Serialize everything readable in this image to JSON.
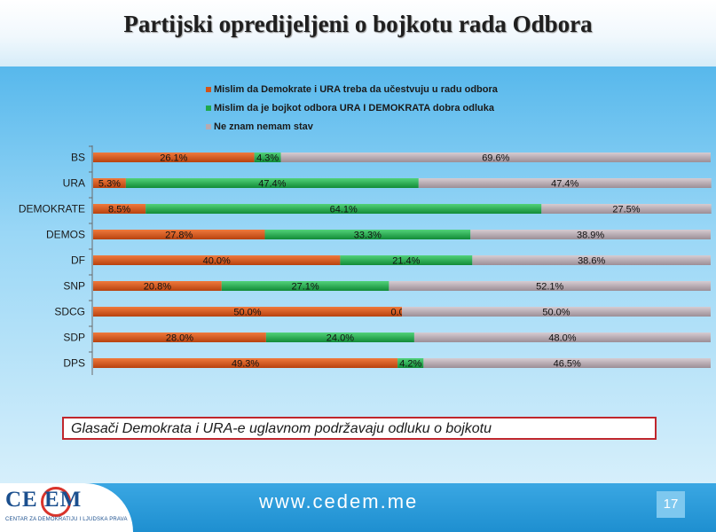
{
  "header": {
    "title": "Partijski opredijeljeni o bojkotu rada Odbora"
  },
  "note": {
    "text": "Glasači Demokrata i URA-e uglavnom podržavaju odluku o bojkotu"
  },
  "footer": {
    "logo_text": "CE  EM",
    "logo_sub": "CENTAR ZA DEMOKRATIJU I LJUDSKA PRAVA",
    "url": "www.cedem.me",
    "page_number": "17"
  },
  "chart_data": {
    "type": "bar",
    "orientation": "horizontal",
    "stacked": true,
    "title": "",
    "xlim": [
      0,
      100
    ],
    "legend_position": "top",
    "categories": [
      "BS",
      "URA",
      "DEMOKRATE",
      "DEMOS",
      "DF",
      "SNP",
      "SDCG",
      "SDP",
      "DPS"
    ],
    "series": [
      {
        "name": "Mislim da Demokrate i URA treba da učestvuju u radu odbora",
        "color": "#d2541a",
        "values": [
          26.1,
          5.3,
          8.5,
          27.8,
          40.0,
          20.8,
          50.0,
          28.0,
          49.3
        ],
        "labels": [
          "26.1%",
          "5.3%",
          "8.5%",
          "27.8%",
          "40.0%",
          "20.8%",
          "50.0%",
          "28.0%",
          "49.3%"
        ]
      },
      {
        "name": "Mislim da je bojkot odbora URA I DEMOKRATA dobra odluka",
        "color": "#1fa84a",
        "values": [
          4.3,
          47.4,
          64.1,
          33.3,
          21.4,
          27.1,
          0.0,
          24.0,
          4.2
        ],
        "labels": [
          "4.3%",
          "47.4%",
          "64.1%",
          "33.3%",
          "21.4%",
          "27.1%",
          "0.0%",
          "24.0%",
          "4.2%"
        ]
      },
      {
        "name": "Ne znam nemam stav",
        "color": "#b7aab1",
        "values": [
          69.6,
          47.4,
          27.5,
          38.9,
          38.6,
          52.1,
          50.0,
          48.0,
          46.5
        ],
        "labels": [
          "69.6%",
          "47.4%",
          "27.5%",
          "38.9%",
          "38.6%",
          "52.1%",
          "50.0%",
          "48.0%",
          "46.5%"
        ]
      }
    ]
  }
}
